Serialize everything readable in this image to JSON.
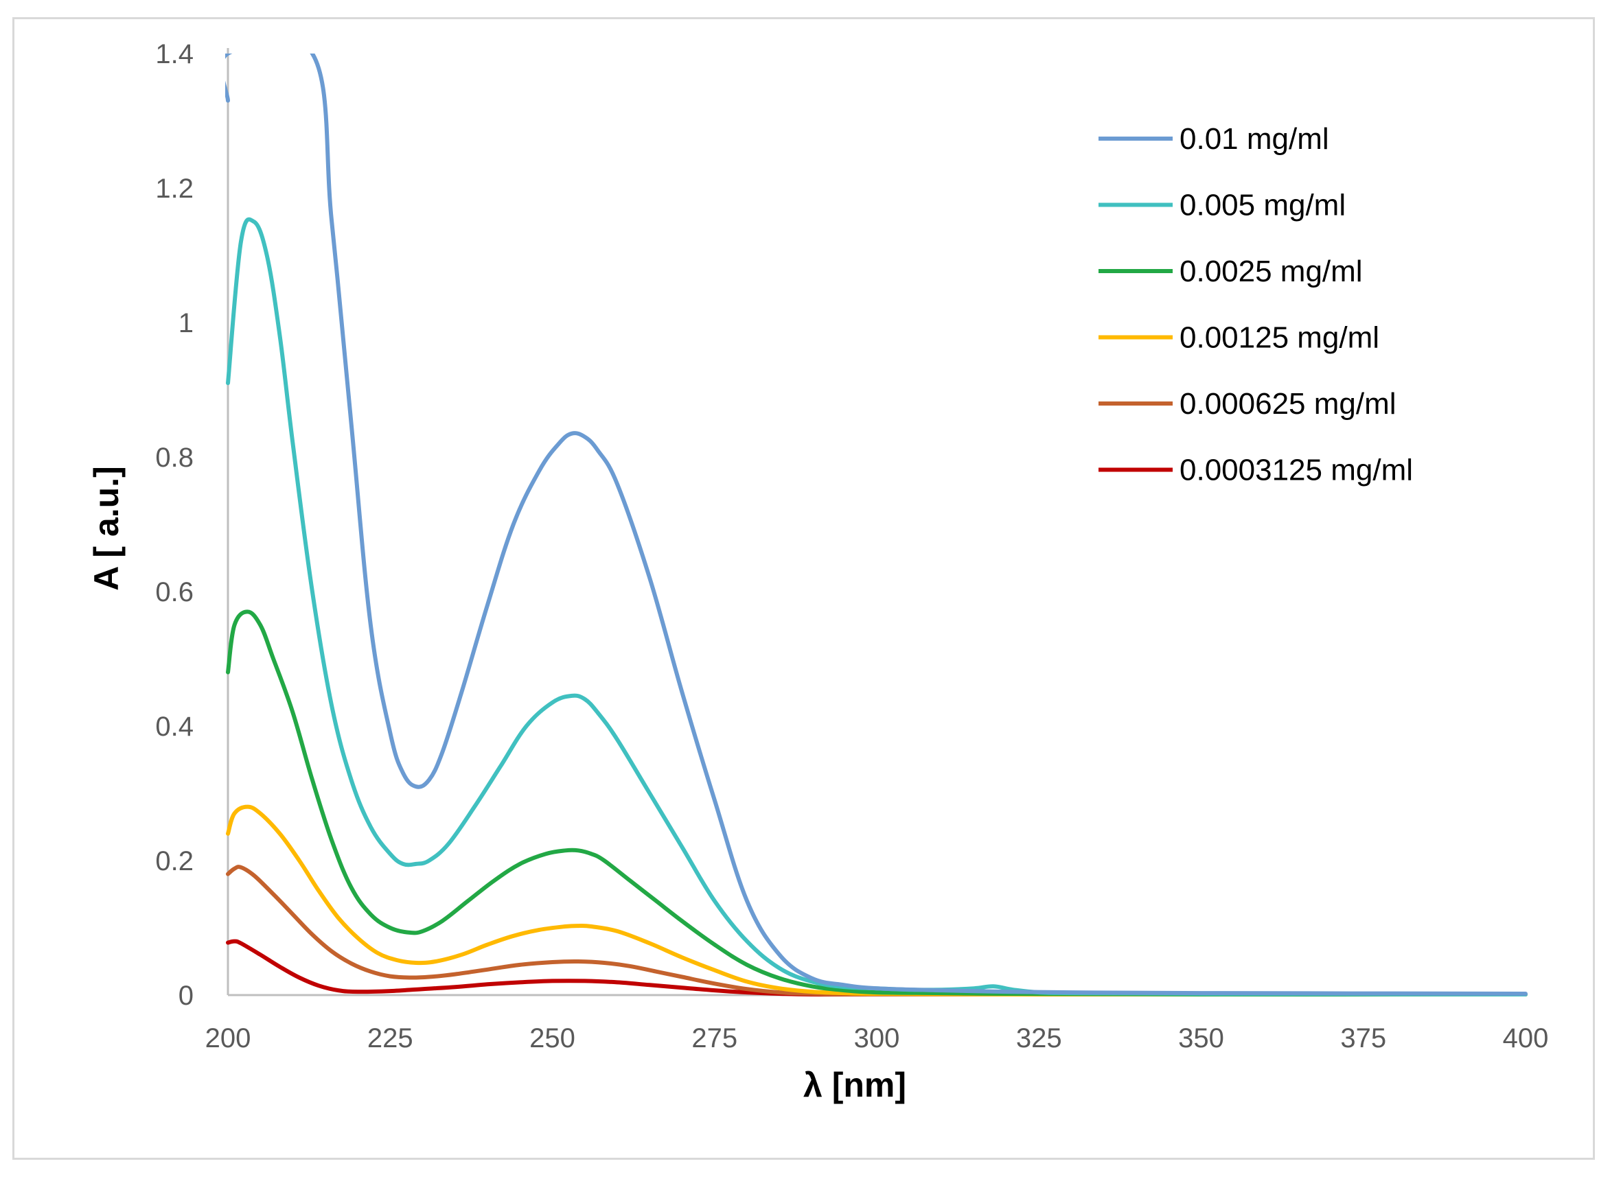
{
  "chart_data": {
    "type": "line",
    "title": "",
    "xlabel": "λ [nm]",
    "ylabel": "A [ a.u.]",
    "xlim": [
      200,
      400
    ],
    "ylim": [
      0,
      1.4
    ],
    "xticks": [
      200,
      225,
      250,
      275,
      300,
      325,
      350,
      375,
      400
    ],
    "xtick_labels": [
      "200",
      "225",
      "250",
      "275",
      "300",
      "325",
      "350",
      "375",
      "400"
    ],
    "yticks": [
      0,
      0.2,
      0.4,
      0.6,
      0.8,
      1,
      1.2,
      1.4
    ],
    "ytick_labels": [
      "0",
      "0.2",
      "0.4",
      "0.6",
      "0.8",
      "1",
      "1.2",
      "1.4"
    ],
    "grid": false,
    "legend_position": "top-right",
    "series": [
      {
        "name": "0.01 mg/ml",
        "color": "#6b9bd2",
        "x": [
          200,
          200,
          213,
          216,
          219,
          222,
          225,
          227,
          229,
          231,
          233,
          236,
          240,
          244,
          248,
          251,
          253,
          255,
          257,
          260,
          265,
          270,
          275,
          280,
          285,
          290,
          295,
          300,
          310,
          320,
          330,
          350,
          400
        ],
        "y": [
          1.33,
          1.4,
          1.4,
          1.15,
          0.85,
          0.55,
          0.39,
          0.33,
          0.31,
          0.32,
          0.36,
          0.45,
          0.58,
          0.7,
          0.78,
          0.82,
          0.835,
          0.83,
          0.81,
          0.76,
          0.62,
          0.45,
          0.29,
          0.14,
          0.06,
          0.025,
          0.015,
          0.01,
          0.007,
          0.005,
          0.004,
          0.003,
          0.002
        ]
      },
      {
        "name": "0.005 mg/ml",
        "color": "#40c0c0",
        "x": [
          200,
          202,
          204,
          206,
          208,
          210,
          213,
          216,
          219,
          222,
          225,
          227,
          229,
          231,
          234,
          238,
          242,
          246,
          250,
          253,
          255,
          257,
          260,
          265,
          270,
          275,
          280,
          285,
          290,
          295,
          300,
          305,
          310,
          315,
          318,
          321,
          325,
          330,
          350,
          400
        ],
        "y": [
          0.91,
          1.12,
          1.15,
          1.1,
          0.98,
          0.82,
          0.6,
          0.43,
          0.32,
          0.25,
          0.21,
          0.195,
          0.195,
          0.2,
          0.225,
          0.28,
          0.34,
          0.4,
          0.435,
          0.445,
          0.44,
          0.42,
          0.38,
          0.3,
          0.22,
          0.14,
          0.08,
          0.04,
          0.02,
          0.012,
          0.01,
          0.008,
          0.008,
          0.01,
          0.013,
          0.008,
          0.004,
          0.003,
          0.002,
          0.001
        ]
      },
      {
        "name": "0.0025 mg/ml",
        "color": "#22a845",
        "x": [
          200,
          201,
          203,
          205,
          207,
          210,
          213,
          216,
          219,
          222,
          225,
          228,
          230,
          233,
          237,
          241,
          245,
          249,
          252,
          254,
          256,
          258,
          262,
          266,
          270,
          275,
          280,
          285,
          290,
          295,
          300,
          310,
          320,
          350,
          400
        ],
        "y": [
          0.48,
          0.55,
          0.57,
          0.55,
          0.5,
          0.42,
          0.32,
          0.23,
          0.16,
          0.12,
          0.1,
          0.093,
          0.095,
          0.11,
          0.14,
          0.17,
          0.195,
          0.21,
          0.215,
          0.215,
          0.21,
          0.2,
          0.17,
          0.14,
          0.11,
          0.075,
          0.045,
          0.025,
          0.013,
          0.007,
          0.004,
          0.003,
          0.002,
          0.001,
          0.001
        ]
      },
      {
        "name": "0.00125 mg/ml",
        "color": "#ffb900",
        "x": [
          200,
          201,
          203,
          205,
          208,
          211,
          214,
          217,
          220,
          223,
          226,
          229,
          232,
          236,
          240,
          244,
          248,
          252,
          254,
          256,
          260,
          265,
          270,
          275,
          280,
          285,
          290,
          295,
          300,
          320,
          350,
          400
        ],
        "y": [
          0.24,
          0.27,
          0.28,
          0.27,
          0.24,
          0.2,
          0.155,
          0.115,
          0.085,
          0.063,
          0.052,
          0.048,
          0.05,
          0.06,
          0.075,
          0.088,
          0.097,
          0.102,
          0.103,
          0.102,
          0.095,
          0.077,
          0.056,
          0.037,
          0.02,
          0.01,
          0.005,
          0.003,
          0.002,
          0.001,
          0.001,
          0.001
        ]
      },
      {
        "name": "0.000625 mg/ml",
        "color": "#c4622d",
        "x": [
          200,
          201,
          202,
          204,
          207,
          210,
          213,
          216,
          219,
          222,
          225,
          228,
          231,
          235,
          240,
          245,
          250,
          254,
          258,
          262,
          266,
          270,
          275,
          280,
          285,
          290,
          300,
          350,
          400
        ],
        "y": [
          0.18,
          0.188,
          0.19,
          0.178,
          0.15,
          0.12,
          0.09,
          0.065,
          0.047,
          0.035,
          0.028,
          0.026,
          0.027,
          0.031,
          0.038,
          0.045,
          0.049,
          0.05,
          0.048,
          0.043,
          0.035,
          0.027,
          0.017,
          0.009,
          0.004,
          0.002,
          0.001,
          0.001,
          0.001
        ]
      },
      {
        "name": "0.0003125 mg/ml",
        "color": "#c00000",
        "x": [
          200,
          201,
          202,
          205,
          208,
          211,
          214,
          217,
          220,
          225,
          230,
          235,
          240,
          245,
          250,
          255,
          260,
          265,
          270,
          275,
          280,
          285,
          290,
          300,
          350,
          400
        ],
        "y": [
          0.078,
          0.08,
          0.077,
          0.06,
          0.042,
          0.026,
          0.014,
          0.007,
          0.005,
          0.006,
          0.009,
          0.012,
          0.016,
          0.019,
          0.021,
          0.021,
          0.019,
          0.015,
          0.011,
          0.007,
          0.004,
          0.002,
          0.001,
          0.001,
          0.001,
          0.001
        ]
      }
    ]
  }
}
